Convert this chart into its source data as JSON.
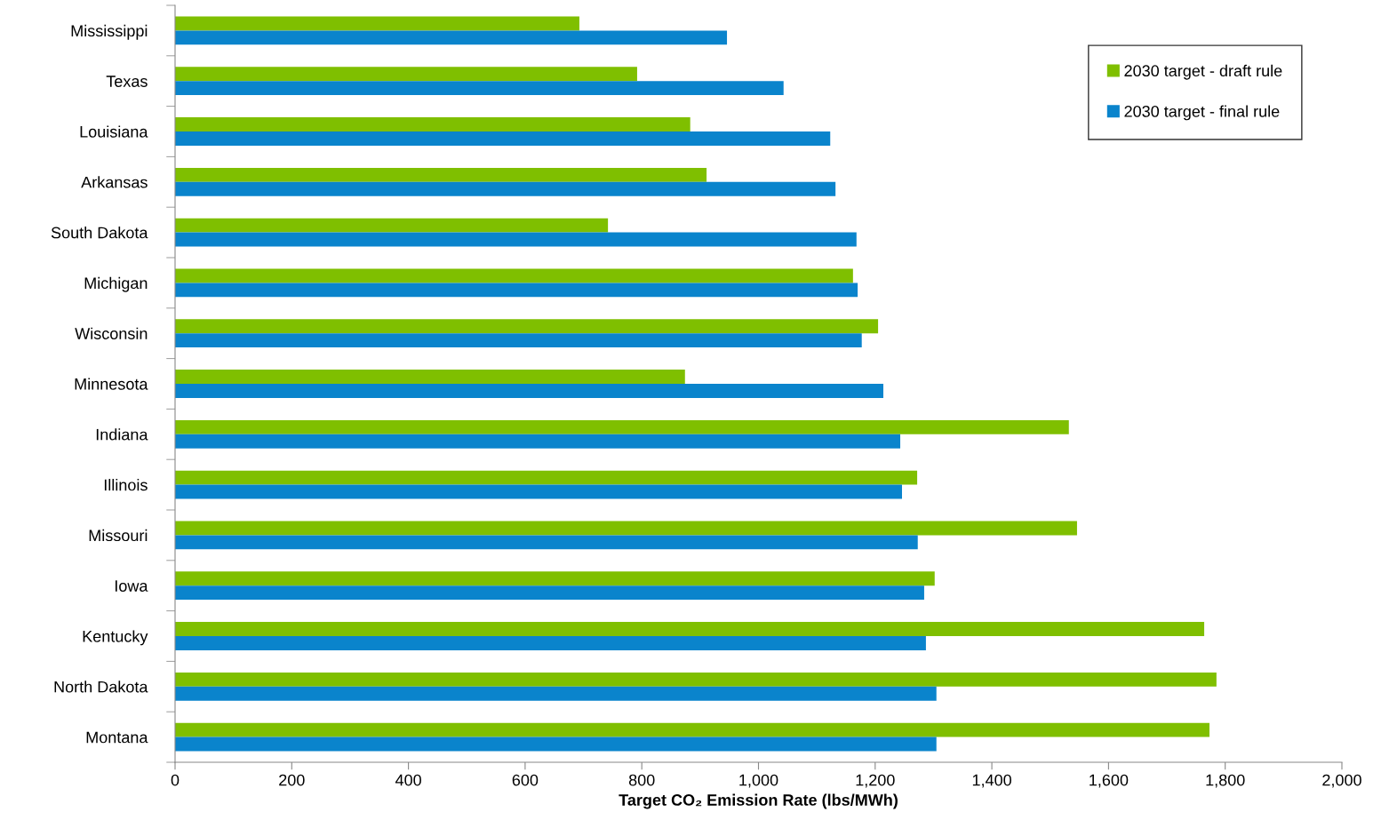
{
  "chart_data": {
    "type": "bar",
    "orientation": "horizontal",
    "xlabel": "Target CO₂ Emission Rate (lbs/MWh)",
    "categories": [
      "Mississippi",
      "Texas",
      "Louisiana",
      "Arkansas",
      "South Dakota",
      "Michigan",
      "Wisconsin",
      "Minnesota",
      "Indiana",
      "Illinois",
      "Missouri",
      "Iowa",
      "Kentucky",
      "North Dakota",
      "Montana"
    ],
    "series": [
      {
        "name": "2030 target - draft rule",
        "color": "#7fbf00",
        "values": [
          693,
          792,
          883,
          911,
          742,
          1162,
          1205,
          874,
          1532,
          1272,
          1546,
          1302,
          1764,
          1785,
          1773
        ]
      },
      {
        "name": "2030 target - final rule",
        "color": "#0a84cc",
        "values": [
          946,
          1043,
          1123,
          1132,
          1168,
          1170,
          1177,
          1214,
          1243,
          1246,
          1273,
          1284,
          1287,
          1305,
          1305
        ]
      }
    ],
    "xlim": [
      0,
      2000
    ],
    "xticks": [
      0,
      200,
      400,
      600,
      800,
      {
        "value": 1000,
        "label": "1,000"
      },
      {
        "value": 1200,
        "label": "1,200"
      },
      {
        "value": 1400,
        "label": "1,400"
      },
      {
        "value": 1600,
        "label": "1,600"
      },
      {
        "value": 1800,
        "label": "1,800"
      },
      {
        "value": 2000,
        "label": "2,000"
      }
    ],
    "grid": false,
    "legend": "top right"
  }
}
